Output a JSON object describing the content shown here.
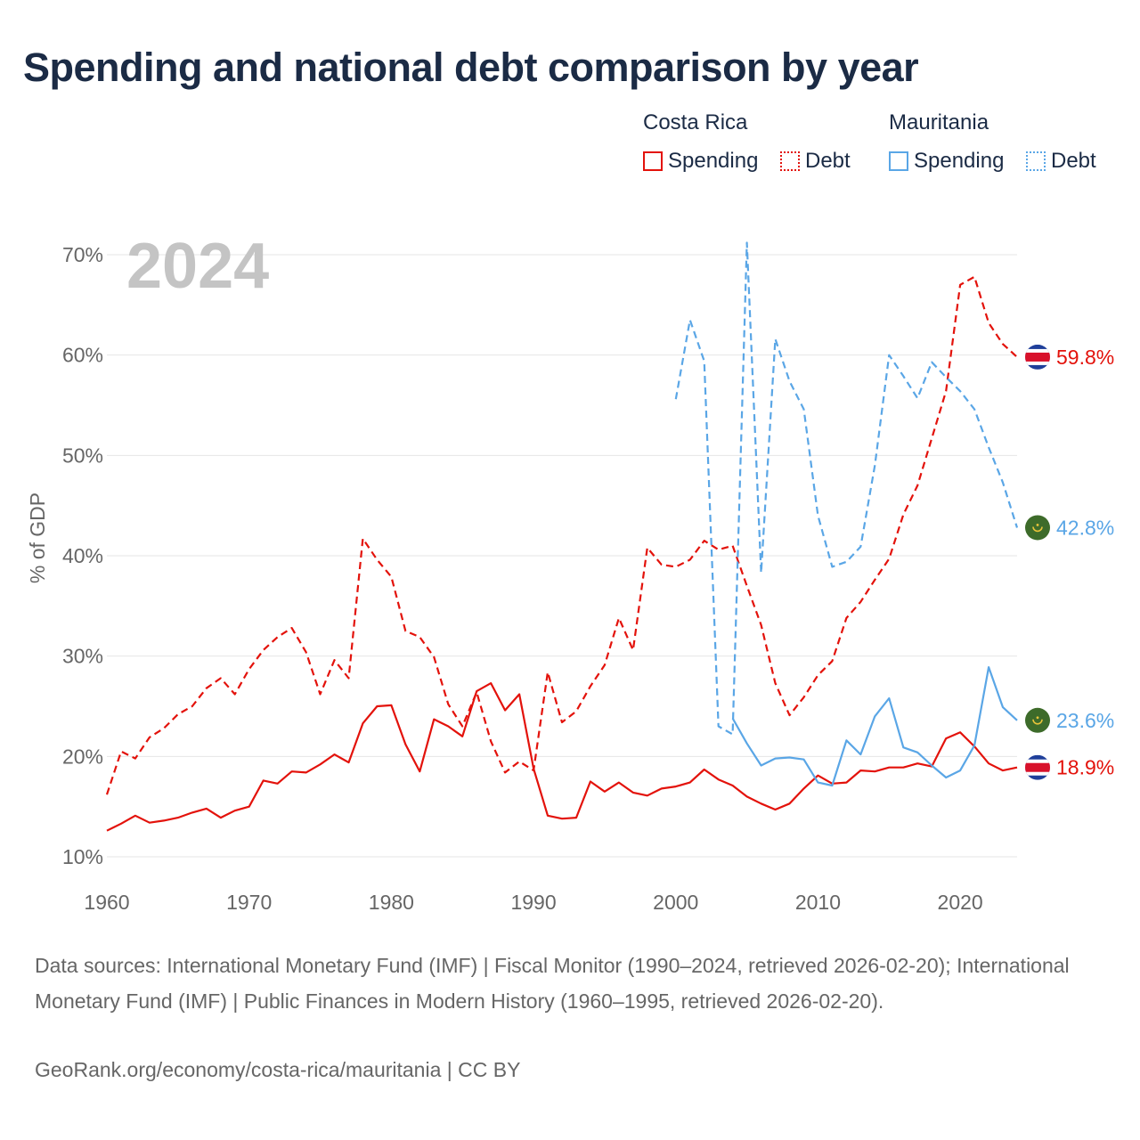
{
  "title": "Spending and national debt comparison by year",
  "legend": {
    "countries": [
      {
        "name": "Costa Rica",
        "color": "#e3120b",
        "items": [
          {
            "label": "Spending",
            "style": "solid"
          },
          {
            "label": "Debt",
            "style": "dotted"
          }
        ]
      },
      {
        "name": "Mauritania",
        "color": "#5aa6e6",
        "items": [
          {
            "label": "Spending",
            "style": "solid"
          },
          {
            "label": "Debt",
            "style": "dotted"
          }
        ]
      }
    ]
  },
  "colors": {
    "costa_rica": "#e3120b",
    "mauritania": "#5aa6e6",
    "grid": "#e6e6e6",
    "axis_text": "#666666",
    "year_watermark": "#c4c4c4"
  },
  "chart_data": {
    "type": "line",
    "title": "Spending and national debt comparison by year",
    "year_label": "2024",
    "ylabel": "% of GDP",
    "xlabel": "",
    "xlim": [
      1960,
      2024
    ],
    "ylim": [
      10,
      70
    ],
    "xticks": [
      1960,
      1970,
      1980,
      1990,
      2000,
      2010,
      2020
    ],
    "yticks": [
      10,
      20,
      30,
      40,
      50,
      60,
      70
    ],
    "ytick_labels": [
      "10%",
      "20%",
      "30%",
      "40%",
      "50%",
      "60%",
      "70%"
    ],
    "grid": true,
    "series": [
      {
        "name": "Costa Rica Spending",
        "country": "Costa Rica",
        "metric": "Spending",
        "dashed": false,
        "color": "#e3120b",
        "end_label": "18.9%",
        "flag": "costa-rica",
        "x": [
          1960,
          1961,
          1962,
          1963,
          1964,
          1965,
          1966,
          1967,
          1968,
          1969,
          1970,
          1971,
          1972,
          1973,
          1974,
          1975,
          1976,
          1977,
          1978,
          1979,
          1980,
          1981,
          1982,
          1983,
          1984,
          1985,
          1986,
          1987,
          1988,
          1989,
          1990,
          1991,
          1992,
          1993,
          1994,
          1995,
          1996,
          1997,
          1998,
          1999,
          2000,
          2001,
          2002,
          2003,
          2004,
          2005,
          2006,
          2007,
          2008,
          2009,
          2010,
          2011,
          2012,
          2013,
          2014,
          2015,
          2016,
          2017,
          2018,
          2019,
          2020,
          2021,
          2022,
          2023,
          2024
        ],
        "values": [
          12.6,
          13.3,
          14.1,
          13.4,
          13.6,
          13.9,
          14.4,
          14.8,
          13.9,
          14.6,
          15.0,
          17.6,
          17.3,
          18.5,
          18.4,
          19.2,
          20.2,
          19.4,
          23.3,
          25.0,
          25.1,
          21.2,
          18.5,
          23.7,
          23.0,
          22.0,
          26.5,
          27.3,
          24.6,
          26.2,
          18.8,
          14.1,
          13.8,
          13.9,
          17.5,
          16.5,
          17.4,
          16.4,
          16.1,
          16.8,
          17.0,
          17.4,
          18.7,
          17.7,
          17.1,
          16.0,
          15.3,
          14.7,
          15.3,
          16.8,
          18.1,
          17.3,
          17.4,
          18.6,
          18.5,
          18.9,
          18.9,
          19.3,
          19.0,
          21.8,
          22.4,
          21.0,
          19.3,
          18.6,
          18.9
        ]
      },
      {
        "name": "Costa Rica Debt",
        "country": "Costa Rica",
        "metric": "Debt",
        "dashed": true,
        "color": "#e3120b",
        "end_label": "59.8%",
        "flag": "costa-rica",
        "x": [
          1960,
          1961,
          1962,
          1963,
          1964,
          1965,
          1966,
          1967,
          1968,
          1969,
          1970,
          1971,
          1972,
          1973,
          1974,
          1975,
          1976,
          1977,
          1978,
          1979,
          1980,
          1981,
          1982,
          1983,
          1984,
          1985,
          1986,
          1987,
          1988,
          1989,
          1990,
          1991,
          1992,
          1993,
          1994,
          1995,
          1996,
          1997,
          1998,
          1999,
          2000,
          2001,
          2002,
          2003,
          2004,
          2005,
          2006,
          2007,
          2008,
          2009,
          2010,
          2011,
          2012,
          2013,
          2014,
          2015,
          2016,
          2017,
          2018,
          2019,
          2020,
          2021,
          2022,
          2023,
          2024
        ],
        "values": [
          16.2,
          20.5,
          19.8,
          21.9,
          22.8,
          24.2,
          25.0,
          26.8,
          27.8,
          26.2,
          28.7,
          30.6,
          31.9,
          32.8,
          30.4,
          26.2,
          29.6,
          27.8,
          41.7,
          39.6,
          37.9,
          32.5,
          31.9,
          29.9,
          25.2,
          23.0,
          26.4,
          21.5,
          18.4,
          19.5,
          18.6,
          28.4,
          23.4,
          24.5,
          27.0,
          29.1,
          33.8,
          30.6,
          40.8,
          39.1,
          38.9,
          39.6,
          41.5,
          40.6,
          41.0,
          37.0,
          33.1,
          27.3,
          24.1,
          25.9,
          28.1,
          29.5,
          33.8,
          35.4,
          37.6,
          39.7,
          44.1,
          47.0,
          51.7,
          56.4,
          67.0,
          67.8,
          63.2,
          61.1,
          59.8
        ]
      },
      {
        "name": "Mauritania Spending",
        "country": "Mauritania",
        "metric": "Spending",
        "dashed": false,
        "color": "#5aa6e6",
        "end_label": "23.6%",
        "flag": "mauritania",
        "x": [
          2004,
          2005,
          2006,
          2007,
          2008,
          2009,
          2010,
          2011,
          2012,
          2013,
          2014,
          2015,
          2016,
          2017,
          2018,
          2019,
          2020,
          2021,
          2022,
          2023,
          2024
        ],
        "values": [
          23.8,
          21.3,
          19.1,
          19.8,
          19.9,
          19.7,
          17.4,
          17.1,
          21.6,
          20.2,
          24.0,
          25.8,
          20.9,
          20.4,
          19.1,
          17.9,
          18.6,
          21.1,
          28.9,
          24.9,
          23.6
        ]
      },
      {
        "name": "Mauritania Debt",
        "country": "Mauritania",
        "metric": "Debt",
        "dashed": true,
        "color": "#5aa6e6",
        "end_label": "42.8%",
        "flag": "mauritania",
        "x": [
          2000,
          2001,
          2002,
          2003,
          2004,
          2005,
          2006,
          2007,
          2008,
          2009,
          2010,
          2011,
          2012,
          2013,
          2014,
          2015,
          2016,
          2017,
          2018,
          2019,
          2020,
          2021,
          2022,
          2023,
          2024
        ],
        "values": [
          55.6,
          63.5,
          59.4,
          23.0,
          22.2,
          71.2,
          38.3,
          61.6,
          57.4,
          54.6,
          44.0,
          38.9,
          39.4,
          40.9,
          49.0,
          60.0,
          57.9,
          55.7,
          59.3,
          57.8,
          56.4,
          54.6,
          50.8,
          47.3,
          42.8
        ]
      }
    ]
  },
  "footer": {
    "sources": "Data sources: International Monetary Fund (IMF) | Fiscal Monitor (1990–2024, retrieved 2026-02-20); International Monetary Fund (IMF) | Public Finances in Modern History (1960–1995, retrieved 2026-02-20).",
    "credit": "GeoRank.org/economy/costa-rica/mauritania | CC BY"
  }
}
